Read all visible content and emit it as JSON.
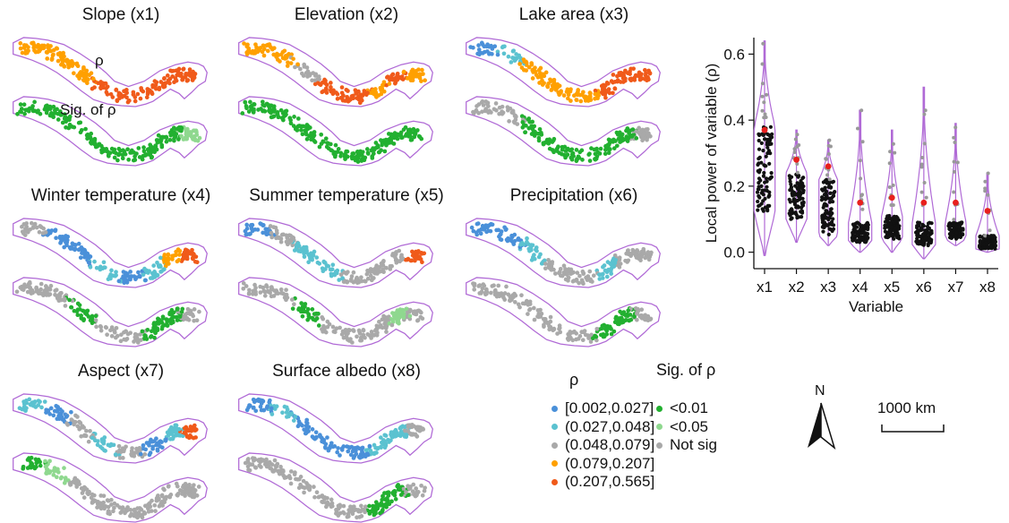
{
  "maps": [
    {
      "title": "Slope (x1)",
      "top": [
        "#ffa000",
        "#ffa000",
        "#ffa000",
        "#f05a1a",
        "#f05a1a",
        "#f05a1a",
        "#f05a1a",
        "#f05a1a"
      ],
      "bottom": [
        "#22b030",
        "#22b030",
        "#22b030",
        "#22b030",
        "#22b030",
        "#22b030",
        "#22b030",
        "#8fd88f"
      ]
    },
    {
      "title": "Elevation (x2)",
      "top": [
        "#ffa000",
        "#ffa000",
        "#a9a9a9",
        "#f05a1a",
        "#f05a1a",
        "#ffa000",
        "#f05a1a",
        "#ffa000"
      ],
      "bottom": [
        "#22b030",
        "#22b030",
        "#22b030",
        "#22b030",
        "#22b030",
        "#22b030",
        "#22b030",
        "#22b030"
      ]
    },
    {
      "title": "Lake area (x3)",
      "top": [
        "#4a90d9",
        "#5bc2d0",
        "#ffa000",
        "#ffa000",
        "#ffa000",
        "#f05a1a",
        "#f05a1a",
        "#f05a1a"
      ],
      "bottom": [
        "#a9a9a9",
        "#a9a9a9",
        "#22b030",
        "#22b030",
        "#22b030",
        "#22b030",
        "#22b030",
        "#a9a9a9"
      ]
    },
    {
      "title": "Winter temperature (x4)",
      "top": [
        "#a9a9a9",
        "#4a90d9",
        "#4a90d9",
        "#5bc2d0",
        "#4a90d9",
        "#5bc2d0",
        "#ffa000",
        "#f05a1a"
      ],
      "bottom": [
        "#a9a9a9",
        "#a9a9a9",
        "#22b030",
        "#a9a9a9",
        "#a9a9a9",
        "#22b030",
        "#22b030",
        "#a9a9a9"
      ]
    },
    {
      "title": "Summer temperature (x5)",
      "top": [
        "#4a90d9",
        "#a9a9a9",
        "#5bc2d0",
        "#5bc2d0",
        "#a9a9a9",
        "#a9a9a9",
        "#a9a9a9",
        "#f05a1a"
      ],
      "bottom": [
        "#a9a9a9",
        "#a9a9a9",
        "#22b030",
        "#a9a9a9",
        "#a9a9a9",
        "#a9a9a9",
        "#8fd88f",
        "#a9a9a9"
      ]
    },
    {
      "title": "Precipitation (x6)",
      "top": [
        "#4a90d9",
        "#4a90d9",
        "#5bc2d0",
        "#a9a9a9",
        "#a9a9a9",
        "#5bc2d0",
        "#a9a9a9",
        "#a9a9a9"
      ],
      "bottom": [
        "#a9a9a9",
        "#a9a9a9",
        "#a9a9a9",
        "#a9a9a9",
        "#a9a9a9",
        "#22b030",
        "#22b030",
        "#a9a9a9"
      ]
    },
    {
      "title": "Aspect (x7)",
      "top": [
        "#5bc2d0",
        "#4a90d9",
        "#a9a9a9",
        "#5bc2d0",
        "#a9a9a9",
        "#4a90d9",
        "#5bc2d0",
        "#f05a1a"
      ],
      "bottom": [
        "#22b030",
        "#8fd88f",
        "#a9a9a9",
        "#a9a9a9",
        "#a9a9a9",
        "#a9a9a9",
        "#a9a9a9",
        "#a9a9a9"
      ]
    },
    {
      "title": "Surface albedo (x8)",
      "top": [
        "#4a90d9",
        "#5bc2d0",
        "#4a90d9",
        "#4a90d9",
        "#4a90d9",
        "#5bc2d0",
        "#5bc2d0",
        "#a9a9a9"
      ],
      "bottom": [
        "#a9a9a9",
        "#a9a9a9",
        "#a9a9a9",
        "#a9a9a9",
        "#a9a9a9",
        "#22b030",
        "#22b030",
        "#a9a9a9"
      ]
    }
  ],
  "map_labels": {
    "rho": "ρ",
    "sig": "Sig. of  ρ"
  },
  "legend": {
    "rho_title": "ρ",
    "rho_items": [
      {
        "label": "[0.002,0.027]",
        "color": "#4a90d9"
      },
      {
        "label": "(0.027,0.048]",
        "color": "#5bc2d0"
      },
      {
        "label": "(0.048,0.079]",
        "color": "#a9a9a9"
      },
      {
        "label": "(0.079,0.207]",
        "color": "#ffa000"
      },
      {
        "label": "(0.207,0.565]",
        "color": "#f05a1a"
      }
    ],
    "sig_title": "Sig. of  ρ",
    "sig_items": [
      {
        "label": "<0.01",
        "color": "#22b030"
      },
      {
        "label": "<0.05",
        "color": "#8fd88f"
      },
      {
        "label": "Not sig",
        "color": "#a9a9a9"
      }
    ]
  },
  "north_label": "N",
  "scale_label": "1000 km",
  "chart_data": {
    "type": "violin",
    "xlabel": "Variable",
    "ylabel": "Local power of variable (ρ)",
    "ylim": [
      -0.05,
      0.65
    ],
    "yticks": [
      0.0,
      0.2,
      0.4,
      0.6
    ],
    "ytick_labels": [
      "0.0",
      "0.2",
      "0.4",
      "0.6"
    ],
    "categories": [
      "x1",
      "x2",
      "x3",
      "x4",
      "x5",
      "x6",
      "x7",
      "x8"
    ],
    "series": [
      {
        "min": -0.01,
        "max": 0.64,
        "q1": 0.12,
        "median": 0.3,
        "q3": 0.38,
        "mean": 0.37,
        "width": 0.9
      },
      {
        "min": 0.03,
        "max": 0.37,
        "q1": 0.1,
        "median": 0.16,
        "q3": 0.24,
        "mean": 0.28,
        "width": 0.9
      },
      {
        "min": 0.02,
        "max": 0.34,
        "q1": 0.05,
        "median": 0.17,
        "q3": 0.22,
        "mean": 0.26,
        "width": 0.8
      },
      {
        "min": 0.0,
        "max": 0.43,
        "q1": 0.03,
        "median": 0.05,
        "q3": 0.09,
        "mean": 0.15,
        "width": 1.0
      },
      {
        "min": 0.0,
        "max": 0.37,
        "q1": 0.04,
        "median": 0.07,
        "q3": 0.11,
        "mean": 0.165,
        "width": 0.9
      },
      {
        "min": -0.02,
        "max": 0.5,
        "q1": 0.02,
        "median": 0.05,
        "q3": 0.09,
        "mean": 0.15,
        "width": 1.0
      },
      {
        "min": 0.02,
        "max": 0.39,
        "q1": 0.04,
        "median": 0.06,
        "q3": 0.09,
        "mean": 0.15,
        "width": 0.9
      },
      {
        "min": 0.0,
        "max": 0.24,
        "q1": 0.01,
        "median": 0.02,
        "q3": 0.05,
        "mean": 0.125,
        "width": 1.0
      }
    ],
    "colors": {
      "violin": "#b06ad6",
      "points": "#111111",
      "outliers": "#999999",
      "mean": "#e8201e"
    }
  }
}
